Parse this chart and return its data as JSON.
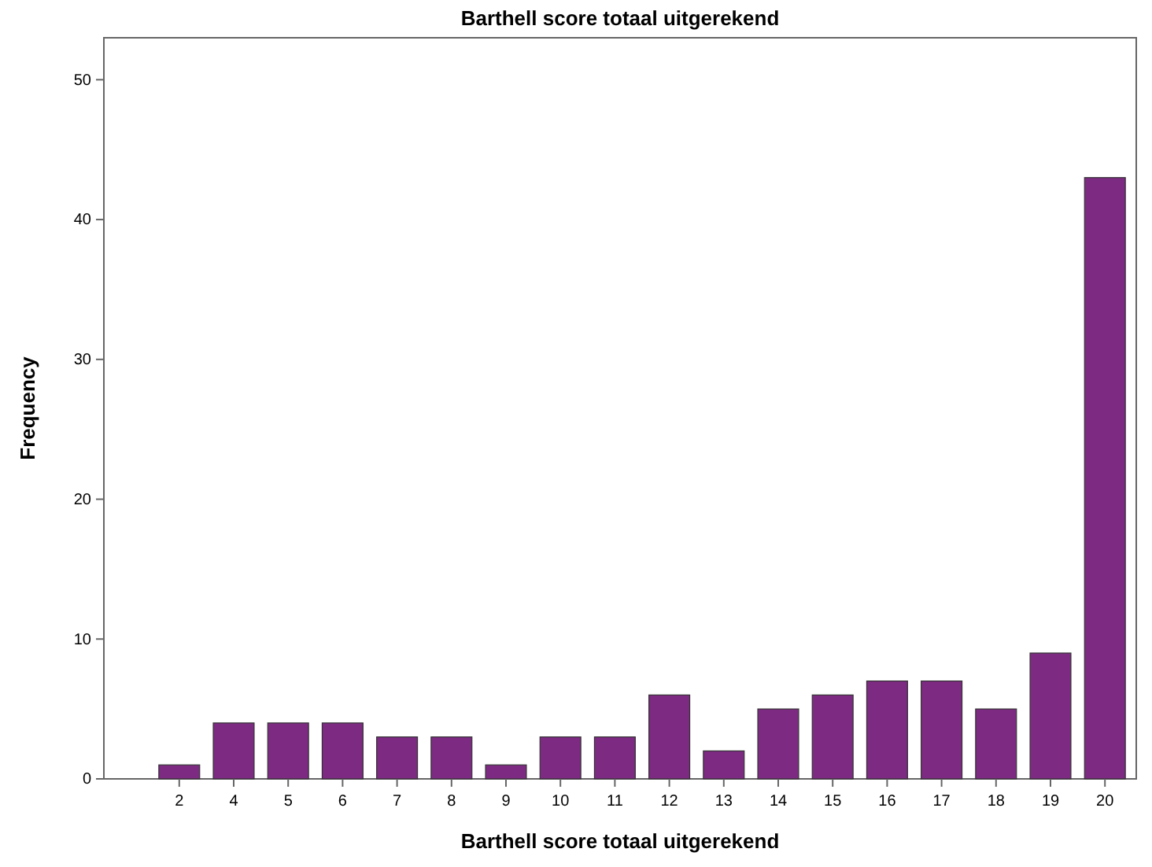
{
  "chart_data": {
    "type": "bar",
    "title": "Barthell score totaal uitgerekend",
    "xlabel": "Barthell score totaal uitgerekend",
    "ylabel": "Frequency",
    "categories": [
      "2",
      "4",
      "5",
      "6",
      "7",
      "8",
      "9",
      "10",
      "11",
      "12",
      "13",
      "14",
      "15",
      "16",
      "17",
      "18",
      "19",
      "20"
    ],
    "values": [
      1,
      4,
      4,
      4,
      3,
      3,
      1,
      3,
      3,
      6,
      2,
      5,
      6,
      7,
      7,
      5,
      9,
      43
    ],
    "color": "#7d2a82",
    "ylim": [
      0,
      53
    ],
    "yticks": [
      0,
      10,
      20,
      30,
      40,
      50
    ],
    "grid": false
  }
}
